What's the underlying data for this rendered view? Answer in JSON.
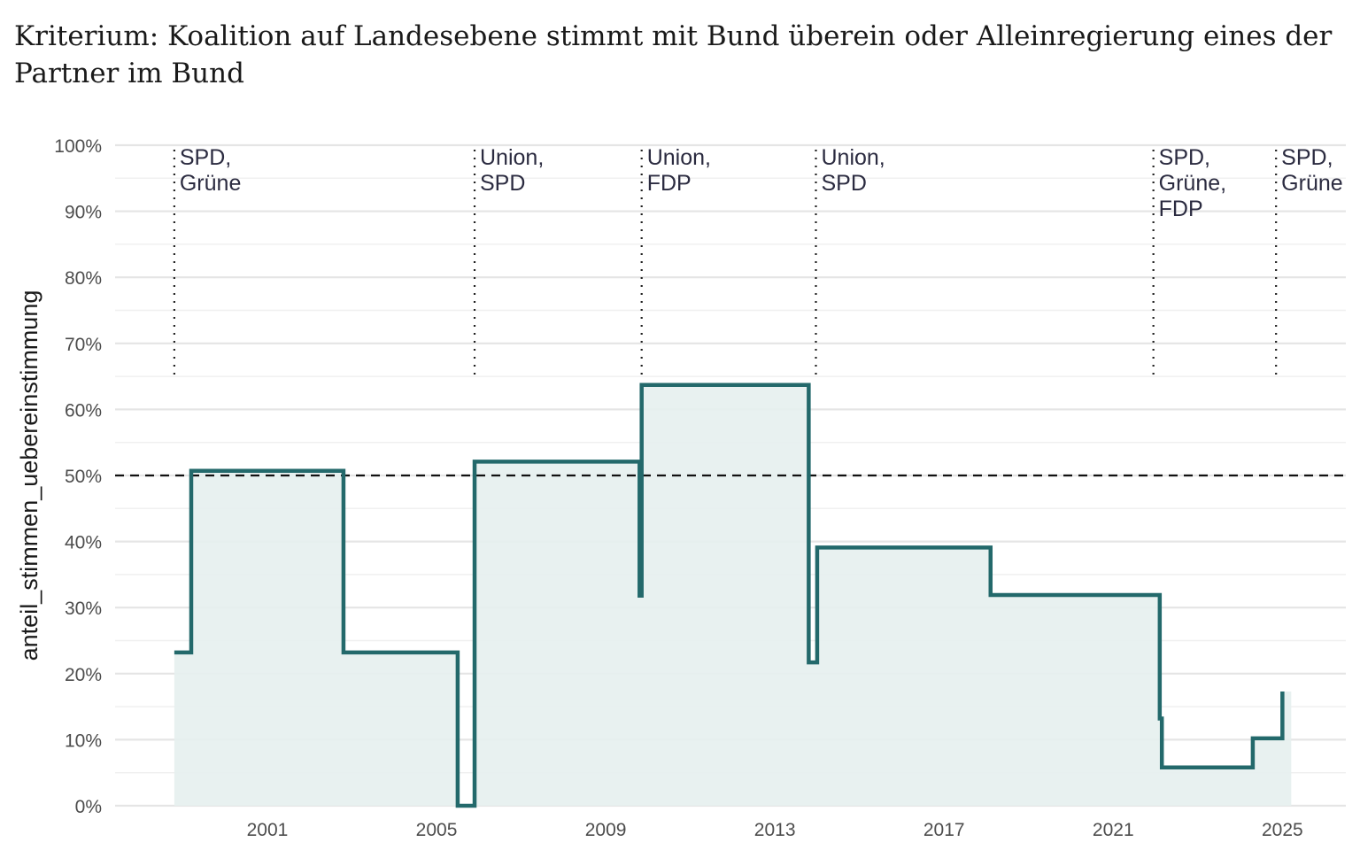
{
  "chart_data": {
    "type": "line",
    "step": true,
    "title": "Kriterium: Koalition auf Landesebene stimmt mit Bund überein oder Alleinregierung eines der\nPartner im Bund",
    "xlabel": "",
    "ylabel": "anteil_stimmen_uebereinstimmung",
    "xlim": [
      1997.4,
      2026.5
    ],
    "ylim": [
      0,
      100
    ],
    "x_ticks": [
      2001,
      2005,
      2009,
      2013,
      2017,
      2021,
      2025
    ],
    "y_ticks": [
      0,
      10,
      20,
      30,
      40,
      50,
      60,
      70,
      80,
      90,
      100
    ],
    "y_tick_format": "percent",
    "grid": true,
    "reference_line": {
      "y": 50,
      "style": "dashed"
    },
    "line_color": "#23696b",
    "area_fill": "#e6efee",
    "points": [
      {
        "x": 1998.8,
        "y": 23.2
      },
      {
        "x": 1999.2,
        "y": 50.7
      },
      {
        "x": 2002.8,
        "y": 23.2
      },
      {
        "x": 2005.5,
        "y": 0
      },
      {
        "x": 2005.9,
        "y": 52.1
      },
      {
        "x": 2009.8,
        "y": 31.8
      },
      {
        "x": 2009.85,
        "y": 63.7
      },
      {
        "x": 2013.8,
        "y": 21.7
      },
      {
        "x": 2014.0,
        "y": 39.1
      },
      {
        "x": 2018.1,
        "y": 31.9
      },
      {
        "x": 2022.1,
        "y": 13.2
      },
      {
        "x": 2022.15,
        "y": 5.8
      },
      {
        "x": 2024.3,
        "y": 10.2
      },
      {
        "x": 2025.0,
        "y": 17.3
      }
    ],
    "govt_changes": [
      {
        "x": 1998.8,
        "label": [
          "SPD,",
          "Grüne"
        ]
      },
      {
        "x": 2005.9,
        "label": [
          "Union,",
          "SPD"
        ]
      },
      {
        "x": 2009.85,
        "label": [
          "Union,",
          "FDP"
        ]
      },
      {
        "x": 2013.97,
        "label": [
          "Union,",
          "SPD"
        ]
      },
      {
        "x": 2021.95,
        "label": [
          "SPD,",
          "Grüne,",
          "FDP"
        ]
      },
      {
        "x": 2024.85,
        "label": [
          "SPD,",
          "Grüne"
        ]
      }
    ]
  }
}
